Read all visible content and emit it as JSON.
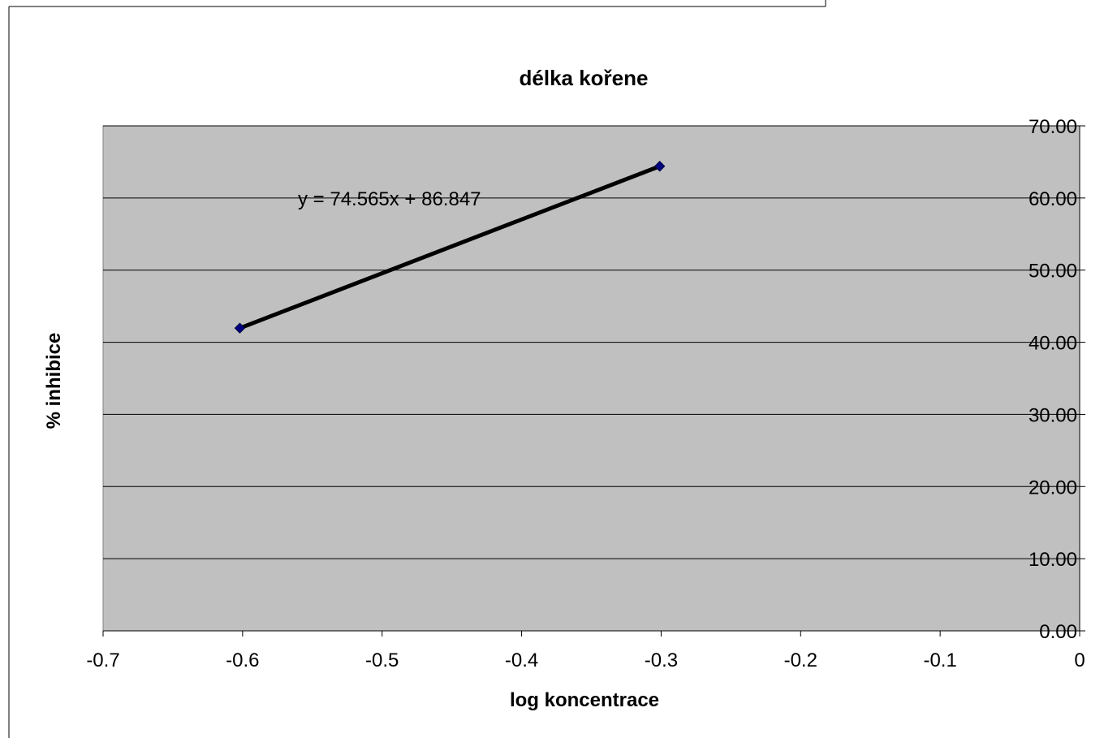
{
  "chart_data": {
    "type": "scatter",
    "title": "délka kořene",
    "xlabel": "log koncentrace",
    "ylabel": "% inhibice",
    "xlim": [
      -0.7,
      0
    ],
    "ylim": [
      0,
      70
    ],
    "x_ticks": [
      "-0.7",
      "-0.6",
      "-0.5",
      "-0.4",
      "-0.3",
      "-0.2",
      "-0.1",
      "0"
    ],
    "x_tick_values": [
      -0.7,
      -0.6,
      -0.5,
      -0.4,
      -0.3,
      -0.2,
      -0.1,
      0
    ],
    "y_ticks": [
      "0.00",
      "10.00",
      "20.00",
      "30.00",
      "40.00",
      "50.00",
      "60.00",
      "70.00"
    ],
    "y_tick_values": [
      0,
      10,
      20,
      30,
      40,
      50,
      60,
      70
    ],
    "y_axis_side": "right",
    "grid": "horizontal",
    "plot_background": "#c0c0c0",
    "marker_color": "#000080",
    "trendline_color": "#000000",
    "series": [
      {
        "x": [
          -0.602,
          -0.301
        ],
        "y": [
          41.96,
          64.4
        ]
      }
    ],
    "trendline": {
      "equation": "y = 74.565x + 86.847",
      "slope": 74.565,
      "intercept": 86.847
    }
  }
}
